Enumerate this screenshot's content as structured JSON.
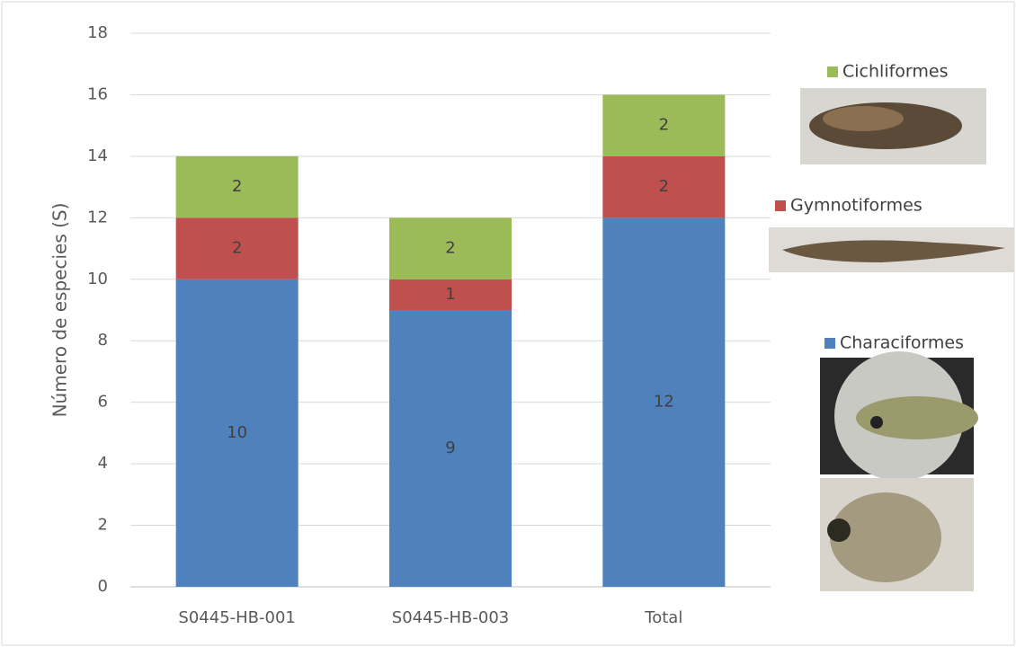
{
  "chart_data": {
    "type": "stacked_bar",
    "y_label": "Número de especies (S)",
    "categories": [
      "S0445-HB-001",
      "S0445-HB-003",
      "Total"
    ],
    "series": [
      {
        "name": "Characiformes",
        "color": "#4f81bd",
        "values": [
          10,
          9,
          12
        ]
      },
      {
        "name": "Gymnotiformes",
        "color": "#c0504d",
        "values": [
          2,
          1,
          2
        ]
      },
      {
        "name": "Cichliformes",
        "color": "#9bbb59",
        "values": [
          2,
          2,
          2
        ]
      }
    ],
    "ylim": [
      0,
      18
    ],
    "yticks": [
      0,
      2,
      4,
      6,
      8,
      10,
      12,
      14,
      16,
      18
    ],
    "grid": true
  }
}
